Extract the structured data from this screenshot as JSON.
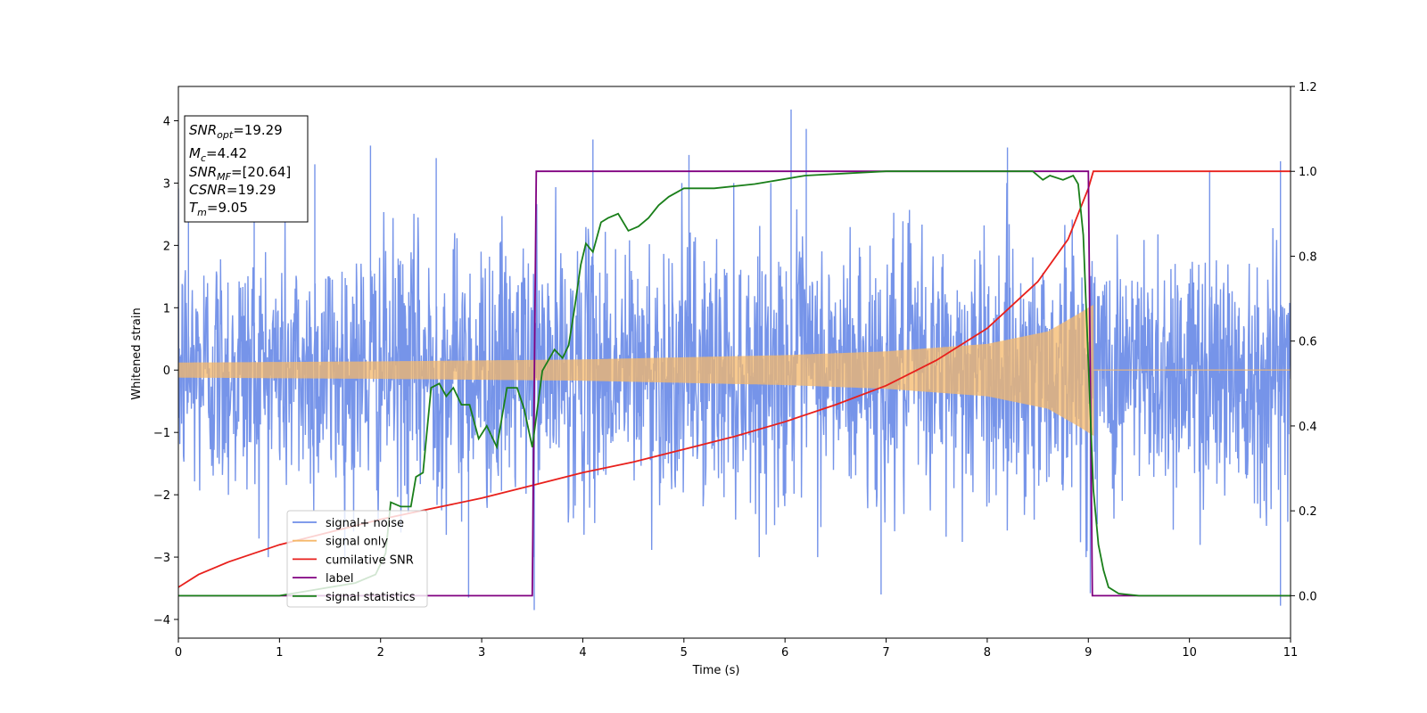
{
  "chart_data": {
    "type": "line",
    "xlabel": "Time (s)",
    "ylabel": "Whitened strain",
    "xlim": [
      0,
      11
    ],
    "ylim": [
      -4.3,
      4.55
    ],
    "y2lim": [
      -0.1,
      1.2
    ],
    "x_ticks": [
      "0",
      "1",
      "2",
      "3",
      "4",
      "5",
      "6",
      "7",
      "8",
      "9",
      "10",
      "11"
    ],
    "y_ticks": [
      "−4",
      "−3",
      "−2",
      "−1",
      "0",
      "1",
      "2",
      "3",
      "4"
    ],
    "y2_ticks": [
      "0.0",
      "0.2",
      "0.4",
      "0.6",
      "0.8",
      "1.0",
      "1.2"
    ],
    "grid": false,
    "legend_position": "lower-left",
    "legend": [
      {
        "label": "signal+ noise",
        "color": "#6f8ee8"
      },
      {
        "label": "signal only",
        "color": "#f5b86a"
      },
      {
        "label": "cumilative SNR",
        "color": "#e8201c"
      },
      {
        "label": "label",
        "color": "#800080"
      },
      {
        "label": "signal statistics",
        "color": "#1a7f1a"
      }
    ],
    "annotation": {
      "lines": [
        {
          "main": "SNR",
          "sub": "opt",
          "rest": "=19.29"
        },
        {
          "main": "M",
          "sub": "c",
          "rest": "=4.42"
        },
        {
          "main": "SNR",
          "sub": "MF",
          "rest": "=[20.64]"
        },
        {
          "main": "CSNR",
          "sub": "",
          "rest": "=19.29"
        },
        {
          "main": "T",
          "sub": "m",
          "rest": "=9.05"
        }
      ]
    },
    "series": [
      {
        "name": "signal+ noise",
        "axis": "left",
        "noise_std": 1.05,
        "spikes": [
          {
            "x": 0.1,
            "y": 3.2
          },
          {
            "x": 0.75,
            "y": 3.35
          },
          {
            "x": 1.35,
            "y": 3.3
          },
          {
            "x": 1.9,
            "y": 3.6
          },
          {
            "x": 2.55,
            "y": 3.4
          },
          {
            "x": 2.87,
            "y": -3.65
          },
          {
            "x": 3.52,
            "y": -3.85
          },
          {
            "x": 4.1,
            "y": 3.7
          },
          {
            "x": 5.05,
            "y": 3.45
          },
          {
            "x": 6.06,
            "y": 4.18
          },
          {
            "x": 6.21,
            "y": 3.87
          },
          {
            "x": 6.95,
            "y": -3.6
          },
          {
            "x": 8.2,
            "y": 3.57
          },
          {
            "x": 9.02,
            "y": -3.58
          },
          {
            "x": 10.2,
            "y": 3.2
          },
          {
            "x": 10.9,
            "y": 3.35
          },
          {
            "x": 10.9,
            "y": -3.78
          }
        ]
      },
      {
        "name": "signal only",
        "axis": "left",
        "end_time": 9.05,
        "envelope": [
          [
            0,
            0.12
          ],
          [
            2,
            0.14
          ],
          [
            4,
            0.17
          ],
          [
            6,
            0.24
          ],
          [
            7,
            0.3
          ],
          [
            8,
            0.42
          ],
          [
            8.6,
            0.62
          ],
          [
            8.9,
            0.9
          ],
          [
            9.05,
            1.05
          ]
        ]
      },
      {
        "name": "cumilative SNR",
        "axis": "right",
        "x": [
          0,
          0.2,
          0.5,
          1,
          1.5,
          2,
          2.5,
          3,
          3.5,
          4,
          4.5,
          5,
          5.5,
          6,
          6.5,
          7,
          7.5,
          8,
          8.5,
          8.8,
          9.0,
          9.05,
          9.1,
          10,
          11
        ],
        "y": [
          0.02,
          0.05,
          0.08,
          0.12,
          0.15,
          0.18,
          0.205,
          0.23,
          0.26,
          0.29,
          0.315,
          0.345,
          0.375,
          0.41,
          0.45,
          0.495,
          0.555,
          0.63,
          0.74,
          0.84,
          0.96,
          1.0,
          1.0,
          1.0,
          1.0
        ]
      },
      {
        "name": "label",
        "axis": "right",
        "x": [
          0,
          3.5,
          3.54,
          9.0,
          9.04,
          11
        ],
        "y": [
          0.0,
          0.0,
          1.0,
          1.0,
          0.0,
          0.0
        ]
      },
      {
        "name": "signal statistics",
        "axis": "right",
        "x": [
          0,
          1.0,
          1.5,
          1.75,
          1.95,
          2.05,
          2.1,
          2.2,
          2.3,
          2.35,
          2.42,
          2.5,
          2.58,
          2.65,
          2.72,
          2.8,
          2.88,
          2.97,
          3.05,
          3.15,
          3.25,
          3.35,
          3.42,
          3.5,
          3.6,
          3.72,
          3.8,
          3.86,
          3.92,
          3.98,
          4.03,
          4.1,
          4.18,
          4.25,
          4.35,
          4.45,
          4.55,
          4.65,
          4.75,
          4.85,
          5.0,
          5.3,
          5.7,
          6.2,
          7.0,
          8.2,
          8.45,
          8.55,
          8.62,
          8.75,
          8.85,
          8.9,
          8.95,
          9.0,
          9.05,
          9.1,
          9.15,
          9.2,
          9.3,
          9.5,
          11
        ],
        "y": [
          0.0,
          0.0,
          0.02,
          0.03,
          0.05,
          0.1,
          0.22,
          0.21,
          0.21,
          0.28,
          0.29,
          0.49,
          0.5,
          0.47,
          0.49,
          0.45,
          0.45,
          0.37,
          0.4,
          0.35,
          0.49,
          0.49,
          0.44,
          0.35,
          0.53,
          0.58,
          0.56,
          0.59,
          0.68,
          0.78,
          0.83,
          0.81,
          0.88,
          0.89,
          0.9,
          0.86,
          0.87,
          0.89,
          0.92,
          0.94,
          0.96,
          0.96,
          0.97,
          0.99,
          1.0,
          1.0,
          1.0,
          0.98,
          0.99,
          0.98,
          0.99,
          0.97,
          0.85,
          0.55,
          0.25,
          0.12,
          0.06,
          0.02,
          0.005,
          0.0,
          0.0
        ]
      }
    ]
  }
}
